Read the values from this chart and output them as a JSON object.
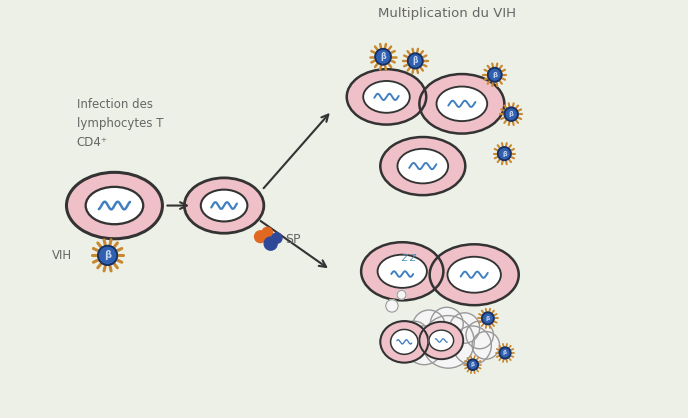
{
  "bg_color": "#edf0e6",
  "title": "Multiplication du VIH",
  "label_infection": "Infection des\nlymphocytes T\nCD4⁺",
  "label_vih": "VIH",
  "label_sp": "SP",
  "cell_outer_color": "#f0c0c8",
  "cell_inner_color": "#ffffff",
  "cell_border_color": "#333333",
  "virus_spike_color": "#c88830",
  "virus_body_color": "#3060b0",
  "arrow_color": "#333333",
  "wave_color": "#4080c0",
  "cloud_color": "#f5f5f5",
  "cloud_border": "#999999",
  "pill_orange": "#e06820",
  "pill_blue": "#304898",
  "zz_color": "#5090b0",
  "text_color": "#666666",
  "figsize": [
    6.88,
    4.18
  ],
  "dpi": 100
}
